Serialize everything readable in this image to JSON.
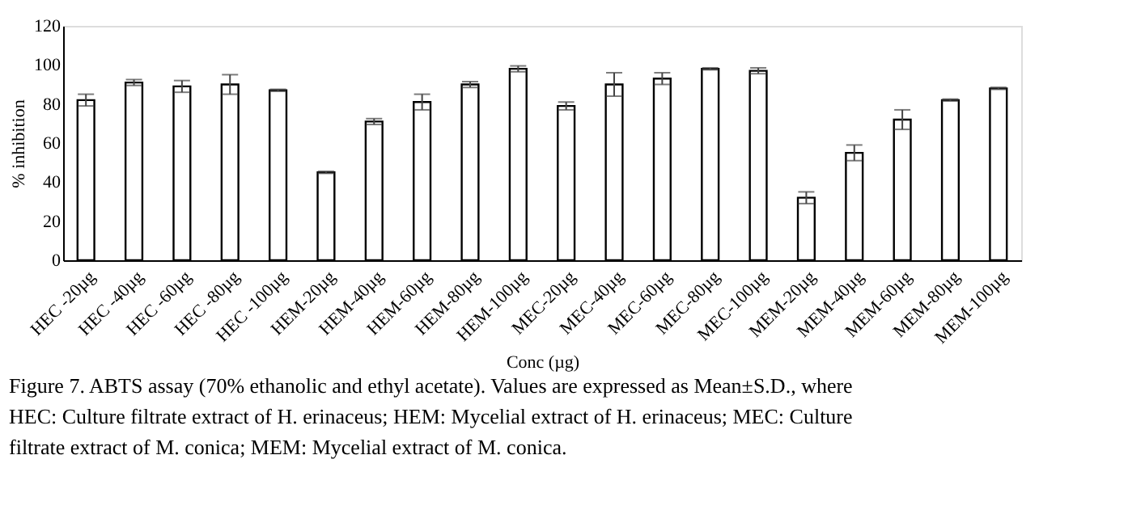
{
  "chart_data": {
    "type": "bar",
    "xlabel": "Conc (µg)",
    "ylabel": "% inhibition",
    "categories": [
      "HEC -20µg",
      "HEC -40µg",
      "HEC -60µg",
      "HEC -80µg",
      "HEC -100µg",
      "HEM-20µg",
      "HEM-40µg",
      "HEM-60µg",
      "HEM-80µg",
      "HEM-100µg",
      "MEC-20µg",
      "MEC-40µg",
      "MEC-60µg",
      "MEC-80µg",
      "MEC-100µg",
      "MEM-20µg",
      "MEM-40µg",
      "MEM-60µg",
      "MEM-80µg",
      "MEM-100µg"
    ],
    "values": [
      82,
      91,
      89,
      90,
      87,
      45,
      71,
      81,
      90,
      98,
      79,
      90,
      93,
      98,
      97,
      32,
      55,
      72,
      82,
      88
    ],
    "errors": [
      3,
      1.5,
      3,
      5,
      0.5,
      0.5,
      1.5,
      4,
      1.5,
      1.5,
      2,
      6,
      3,
      0.5,
      1.5,
      3,
      4,
      5,
      0.5,
      0.5
    ],
    "color": "#ffffff",
    "ylim": [
      0,
      120
    ],
    "yticks": [
      0,
      20,
      40,
      60,
      80,
      100,
      120
    ],
    "grid": false,
    "annotations": [
      "Figure 7. ABTS assay (70% ethanolic and ethyl acetate). Values are expressed as Mean±S.D., where",
      "HEC: Culture filtrate extract of H. erinaceus; HEM: Mycelial extract of H. erinaceus; MEC: Culture",
      "filtrate extract of M. conica; MEM: Mycelial extract of M. conica."
    ]
  }
}
